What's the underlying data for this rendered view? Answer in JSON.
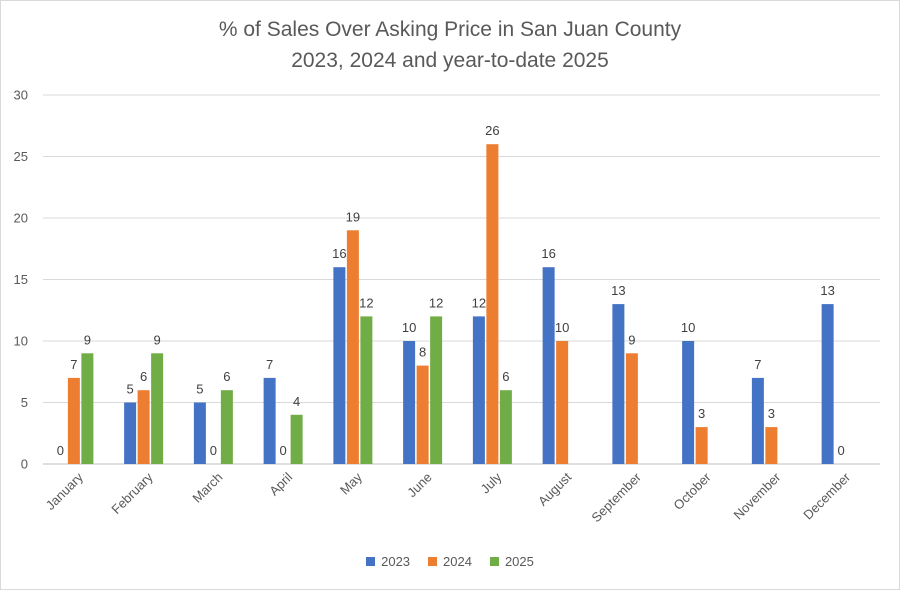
{
  "chart_data": {
    "type": "bar",
    "title": "% of Sales Over Asking Price in San Juan County",
    "subtitle": "2023, 2024 and year-to-date 2025",
    "categories": [
      "January",
      "February",
      "March",
      "April",
      "May",
      "June",
      "July",
      "August",
      "September",
      "October",
      "November",
      "December"
    ],
    "series": [
      {
        "name": "2023",
        "color": "#4472C4",
        "values": [
          0,
          5,
          5,
          7,
          16,
          10,
          12,
          16,
          13,
          10,
          7,
          13
        ]
      },
      {
        "name": "2024",
        "color": "#ED7D31",
        "values": [
          7,
          6,
          0,
          0,
          19,
          8,
          26,
          10,
          9,
          3,
          3,
          0
        ]
      },
      {
        "name": "2025",
        "color": "#70AD47",
        "values": [
          9,
          9,
          6,
          4,
          12,
          12,
          6,
          null,
          null,
          null,
          null,
          null
        ]
      }
    ],
    "ylim": [
      0,
      30
    ],
    "yticks": [
      0,
      5,
      10,
      15,
      20,
      25,
      30
    ],
    "grid": true,
    "legend": "bottom"
  }
}
